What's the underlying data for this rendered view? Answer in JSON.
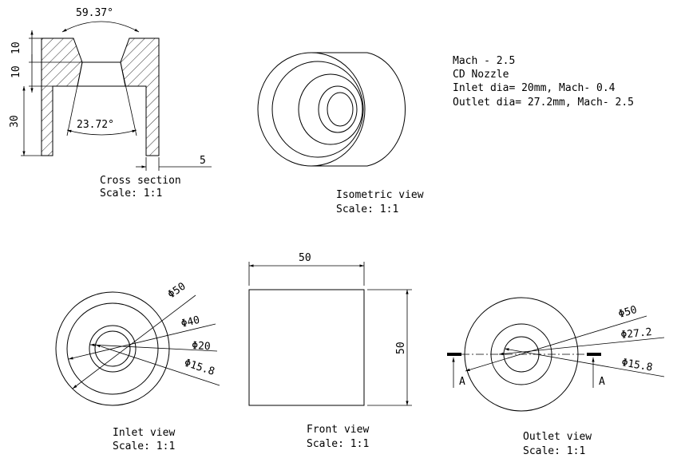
{
  "notes": {
    "line1": "Mach - 2.5",
    "line2": "CD Nozzle",
    "line3": "Inlet dia= 20mm, Mach- 0.4",
    "line4": "Outlet dia= 27.2mm, Mach- 2.5"
  },
  "cross_section": {
    "title": "Cross section",
    "scale": "Scale:  1:1",
    "angle_top": "59.37°",
    "angle_bottom": "23.72°",
    "dim_10a": "10",
    "dim_10b": "10",
    "dim_30": "30",
    "dim_5": "5"
  },
  "isometric": {
    "title": "Isometric view",
    "scale": "Scale:   1:1"
  },
  "inlet": {
    "title": "Inlet view",
    "scale": "Scale:  1:1",
    "d1": "Φ50",
    "d2": "Φ40",
    "d3": "Φ20",
    "d4": "Φ15.8"
  },
  "front": {
    "title": "Front view",
    "scale": "Scale:  1:1",
    "width": "50",
    "height": "50"
  },
  "outlet": {
    "title": "Outlet view",
    "scale": "Scale:  1:1",
    "d1": "Φ50",
    "d2": "Φ27.2",
    "d3": "Φ15.8",
    "section_left": "A",
    "section_right": "A"
  },
  "colors": {
    "line": "#000000",
    "background": "#ffffff"
  }
}
